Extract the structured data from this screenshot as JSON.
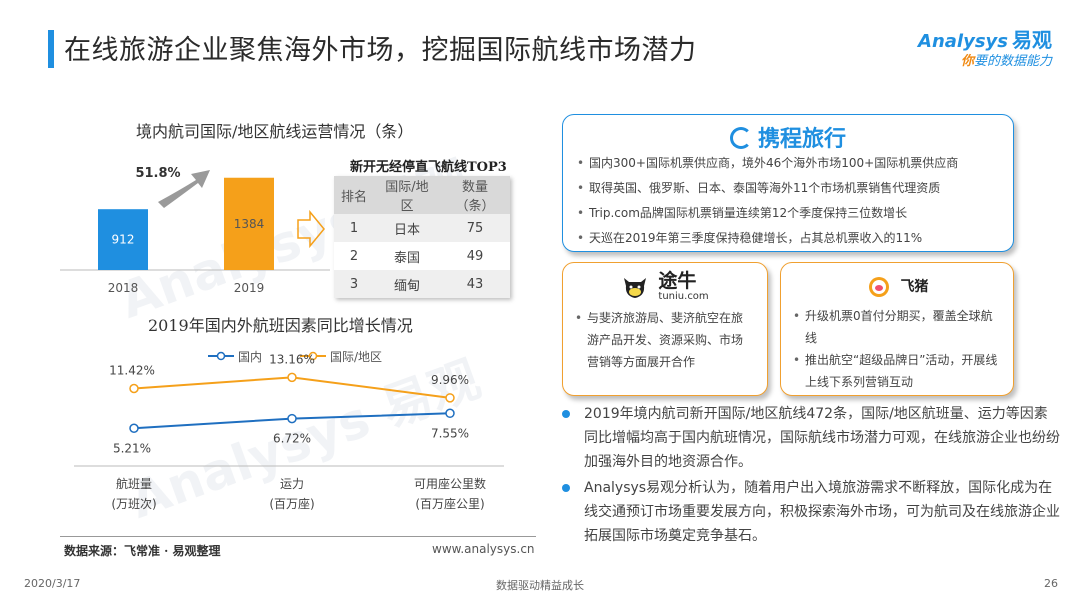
{
  "title": "在线旅游企业聚焦海外市场，挖掘国际航线市场潜力",
  "logo": {
    "brand": "Analysys",
    "brand_cn": "易观",
    "slogan_first": "你",
    "slogan_rest": "要的数据能力"
  },
  "bar_chart": {
    "title": "境内航司国际/地区航线运营情况（条）",
    "growth_label": "51.8%",
    "arrow_icon": "curved-arrow-icon",
    "colors": {
      "2018": "#1f8fe0",
      "2019": "#f5a01a"
    },
    "chart_data": {
      "type": "bar",
      "categories": [
        "2018",
        "2019"
      ],
      "values": [
        912,
        1384
      ],
      "ylim": [
        0,
        1500
      ]
    }
  },
  "top3": {
    "title": "新开无经停直飞航线TOP3",
    "headers": [
      "排名",
      "国际/地区",
      "数量（条）"
    ],
    "rows": [
      {
        "rank": "1",
        "region": "日本",
        "count": "75"
      },
      {
        "rank": "2",
        "region": "泰国",
        "count": "49"
      },
      {
        "rank": "3",
        "region": "缅甸",
        "count": "43"
      }
    ]
  },
  "line_chart": {
    "title": "2019年国内外航班因素同比增长情况",
    "colors": {
      "domestic": "#1f6fc0",
      "international": "#f5a01a"
    },
    "chart_data": {
      "type": "line",
      "categories": [
        "航班量",
        "运力",
        "可用座公里数"
      ],
      "category_sublabels": [
        "(万班次)",
        "(百万座)",
        "(百万座公里)"
      ],
      "series": [
        {
          "name": "国内",
          "values": [
            5.21,
            6.72,
            7.55
          ],
          "labels": [
            "5.21%",
            "6.72%",
            "7.55%"
          ]
        },
        {
          "name": "国际/地区",
          "values": [
            11.42,
            13.16,
            9.96
          ],
          "labels": [
            "11.42%",
            "13.16%",
            "9.96%"
          ]
        }
      ],
      "ylim": [
        0,
        16
      ],
      "legend": "top-center"
    }
  },
  "source": "数据来源：飞常准 · 易观整理",
  "url": "www.analysys.cn",
  "ctrip": {
    "brand": "携程旅行",
    "items": [
      "国内300+国际机票供应商，境外46个海外市场100+国际机票供应商",
      "取得英国、俄罗斯、日本、泰国等海外11个市场机票销售代理资质",
      "Trip.com品牌国际机票销量连续第12个季度保持三位数增长",
      "天巡在2019年第三季度保持稳健增长，占其总机票收入的11%"
    ]
  },
  "tuniu": {
    "brand_cn": "途牛",
    "brand_en": "tuniu.com",
    "items": [
      "与斐济旅游局、斐济航空在旅游产品开发、资源采购、市场营销等方面展开合作"
    ]
  },
  "fliggy": {
    "brand": "飞猪",
    "items": [
      "升级机票0首付分期买，覆盖全球航线",
      "推出航空“超级品牌日”活动，开展线上线下系列营销互动"
    ]
  },
  "bullets": [
    "2019年境内航司新开国际/地区航线472条，国际/地区航班量、运力等因素同比增幅均高于国内航班情况，国际航线市场潜力可观，在线旅游企业也纷纷加强海外目的地资源合作。",
    "Analysys易观分析认为，随着用户出入境旅游需求不断释放，国际化成为在线交通预订市场重要发展方向，积极探索海外市场，可为航司及在线旅游企业拓展国际市场奠定竞争基石。"
  ],
  "footer": {
    "date": "2020/3/17",
    "center": "数据驱动精益成长",
    "page": "26"
  }
}
